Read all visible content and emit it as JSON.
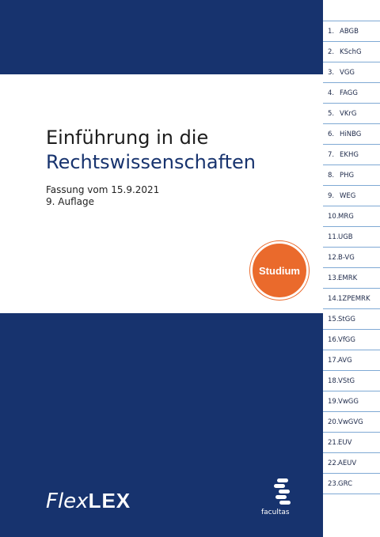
{
  "book": {
    "title_line1": "Einführung in die",
    "title_line2": "Rechtswissenschaften",
    "edition_date": "Fassung vom 15.9.2021",
    "edition": "9. Auflage",
    "badge": "Studium",
    "series_prefix": "Flex",
    "series_suffix": "LEX",
    "publisher": "facultas"
  },
  "colors": {
    "navy": "#17336e",
    "orange": "#ea6a2c",
    "tab_line": "#7fa9d4"
  },
  "tabs": [
    {
      "num": "1.",
      "abbr": "ABGB"
    },
    {
      "num": "2.",
      "abbr": "KSchG"
    },
    {
      "num": "3.",
      "abbr": "VGG"
    },
    {
      "num": "4.",
      "abbr": "FAGG"
    },
    {
      "num": "5.",
      "abbr": "VKrG"
    },
    {
      "num": "6.",
      "abbr": "HiNBG"
    },
    {
      "num": "7.",
      "abbr": "EKHG"
    },
    {
      "num": "8.",
      "abbr": "PHG"
    },
    {
      "num": "9.",
      "abbr": "WEG"
    },
    {
      "num": "10.",
      "abbr": "MRG"
    },
    {
      "num": "11.",
      "abbr": "UGB"
    },
    {
      "num": "12.",
      "abbr": "B-VG"
    },
    {
      "num": "13.",
      "abbr": "EMRK"
    },
    {
      "num": "14.",
      "abbr": "1ZPEMRK"
    },
    {
      "num": "15.",
      "abbr": "StGG"
    },
    {
      "num": "16.",
      "abbr": "VfGG"
    },
    {
      "num": "17.",
      "abbr": "AVG"
    },
    {
      "num": "18.",
      "abbr": "VStG"
    },
    {
      "num": "19.",
      "abbr": "VwGG"
    },
    {
      "num": "20.",
      "abbr": "VwGVG"
    },
    {
      "num": "21.",
      "abbr": "EUV"
    },
    {
      "num": "22.",
      "abbr": "AEUV"
    },
    {
      "num": "23.",
      "abbr": "GRC"
    }
  ]
}
